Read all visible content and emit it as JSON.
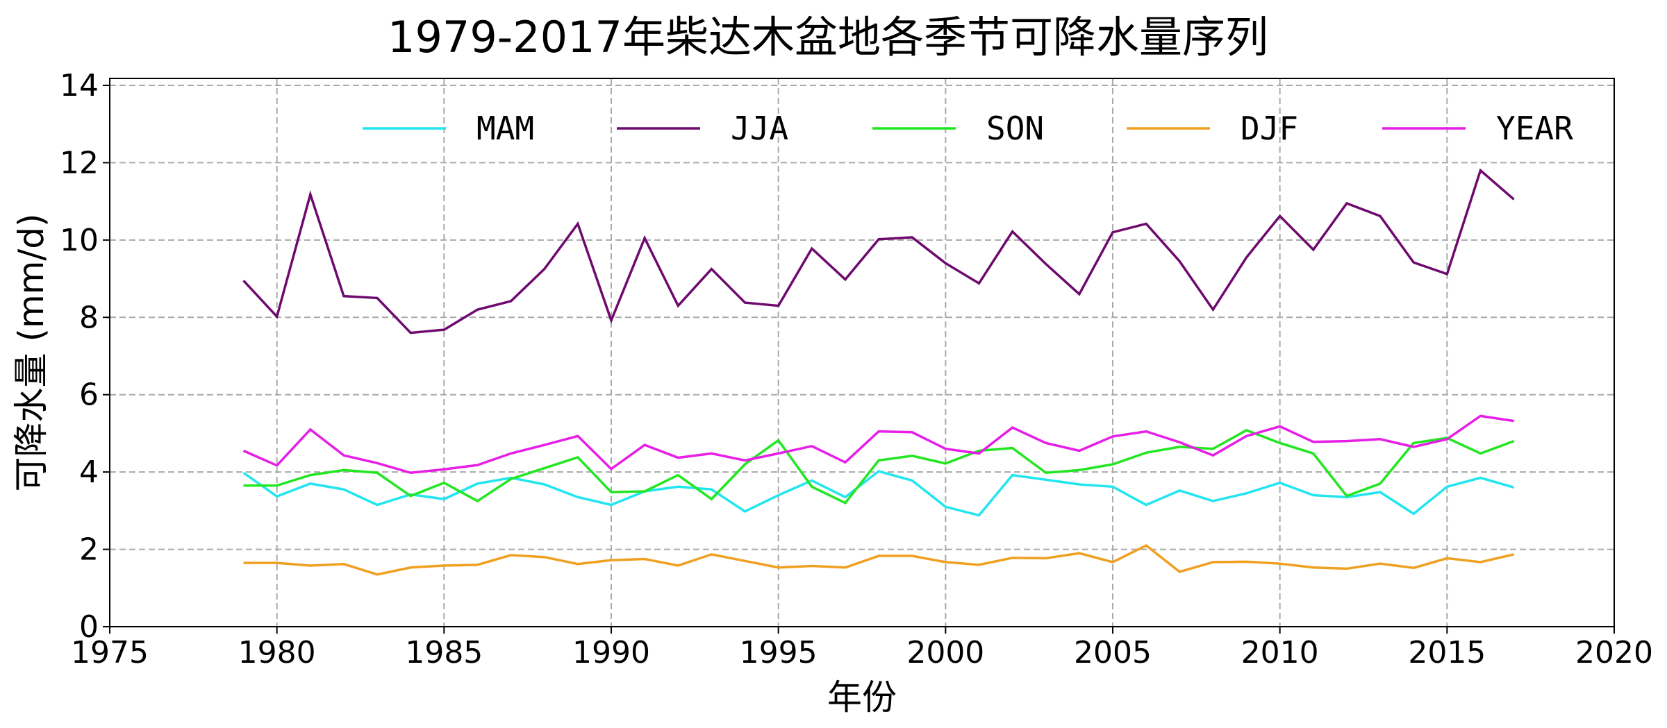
{
  "chart_data": {
    "type": "line",
    "title": "1979-2017年柴达木盆地各季节可降水量序列",
    "xlabel": "年份",
    "ylabel": "可降水量 (mm/d)",
    "xlim": [
      1975,
      2020
    ],
    "ylim": [
      0,
      14.2
    ],
    "xticks": [
      "1975",
      "1980",
      "1985",
      "1990",
      "1995",
      "2000",
      "2005",
      "2010",
      "2015",
      "2020"
    ],
    "yticks": [
      "0",
      "2",
      "4",
      "6",
      "8",
      "10",
      "12",
      "14"
    ],
    "grid": true,
    "legend_position": "top",
    "x": [
      1979,
      1980,
      1981,
      1982,
      1983,
      1984,
      1985,
      1986,
      1987,
      1988,
      1989,
      1990,
      1991,
      1992,
      1993,
      1994,
      1995,
      1996,
      1997,
      1998,
      1999,
      2000,
      2001,
      2002,
      2003,
      2004,
      2005,
      2006,
      2007,
      2008,
      2009,
      2010,
      2011,
      2012,
      2013,
      2014,
      2015,
      2016,
      2017
    ],
    "series": [
      {
        "name": "MAM",
        "color": "#22e5f0",
        "values": [
          3.98,
          3.37,
          3.7,
          3.55,
          3.15,
          3.42,
          3.3,
          3.7,
          3.85,
          3.68,
          3.35,
          3.15,
          3.5,
          3.62,
          3.55,
          2.98,
          3.4,
          3.78,
          3.35,
          4.02,
          3.78,
          3.1,
          2.88,
          3.92,
          3.8,
          3.68,
          3.62,
          3.15,
          3.52,
          3.25,
          3.45,
          3.72,
          3.4,
          3.35,
          3.48,
          2.92,
          3.62,
          3.85,
          3.6
        ]
      },
      {
        "name": "JJA",
        "color": "#6e0a6e",
        "values": [
          8.95,
          8.02,
          11.18,
          8.55,
          8.5,
          7.6,
          7.68,
          8.2,
          8.42,
          9.25,
          10.42,
          7.92,
          10.05,
          8.3,
          9.25,
          8.38,
          8.3,
          9.78,
          8.98,
          10.02,
          10.07,
          9.4,
          8.88,
          10.22,
          9.38,
          8.6,
          10.2,
          10.42,
          9.45,
          8.2,
          9.55,
          10.62,
          9.75,
          10.95,
          10.62,
          9.42,
          9.12,
          11.8,
          11.05
        ]
      },
      {
        "name": "SON",
        "color": "#22e622",
        "values": [
          3.65,
          3.65,
          3.92,
          4.05,
          3.98,
          3.38,
          3.72,
          3.25,
          3.82,
          4.1,
          4.38,
          3.48,
          3.5,
          3.92,
          3.3,
          4.2,
          4.82,
          3.62,
          3.2,
          4.3,
          4.42,
          4.22,
          4.55,
          4.62,
          3.98,
          4.05,
          4.2,
          4.5,
          4.65,
          4.6,
          5.08,
          4.75,
          4.48,
          3.38,
          3.7,
          4.75,
          4.88,
          4.48,
          4.8
        ]
      },
      {
        "name": "DJF",
        "color": "#f0a020",
        "values": [
          1.65,
          1.65,
          1.58,
          1.62,
          1.35,
          1.53,
          1.58,
          1.6,
          1.85,
          1.8,
          1.62,
          1.72,
          1.75,
          1.58,
          1.87,
          1.7,
          1.53,
          1.57,
          1.53,
          1.83,
          1.83,
          1.67,
          1.6,
          1.78,
          1.77,
          1.9,
          1.67,
          2.1,
          1.42,
          1.67,
          1.68,
          1.63,
          1.53,
          1.5,
          1.63,
          1.52,
          1.77,
          1.67,
          1.87
        ]
      },
      {
        "name": "YEAR",
        "color": "#e61ee6",
        "values": [
          4.55,
          4.17,
          5.1,
          4.43,
          4.23,
          3.98,
          4.07,
          4.18,
          4.48,
          4.7,
          4.93,
          4.08,
          4.7,
          4.37,
          4.48,
          4.3,
          4.48,
          4.67,
          4.25,
          5.05,
          5.03,
          4.6,
          4.48,
          5.15,
          4.75,
          4.55,
          4.92,
          5.05,
          4.77,
          4.43,
          4.93,
          5.18,
          4.78,
          4.8,
          4.85,
          4.65,
          4.85,
          5.45,
          5.32
        ]
      }
    ]
  }
}
